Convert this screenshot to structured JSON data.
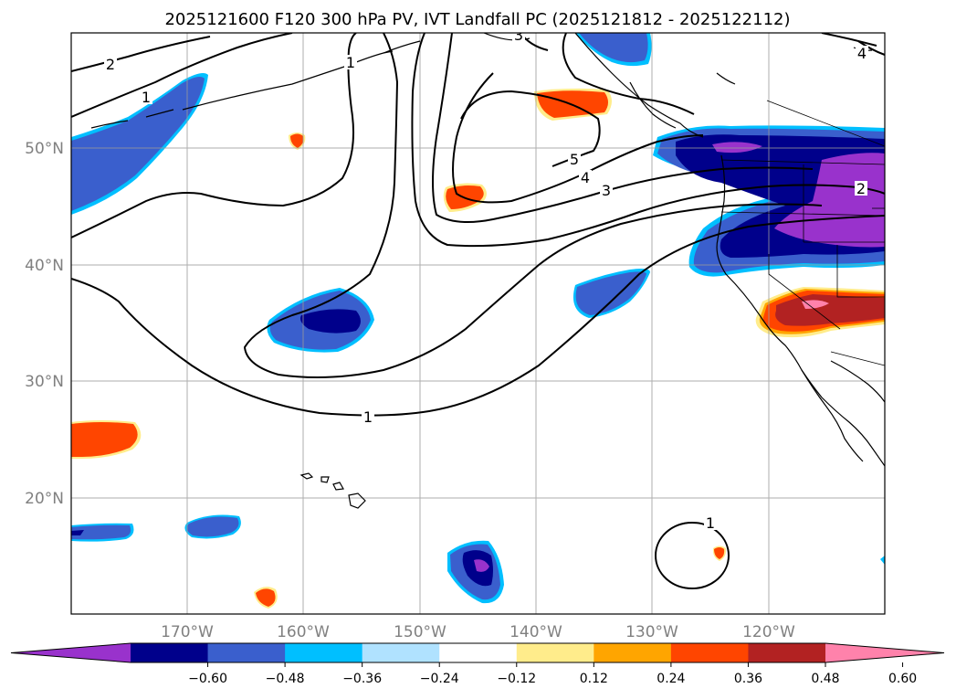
{
  "title": "2025121600 F120 300 hPa PV, IVT Landfall PC (2025121812 - 2025122112)",
  "lat_labels": [
    "50°N",
    "40°N",
    "30°N",
    "20°N"
  ],
  "lon_labels": [
    "170°W",
    "160°W",
    "150°W",
    "140°W",
    "130°W",
    "120°W"
  ],
  "map_extent": {
    "lon": [
      -180,
      -110
    ],
    "lat": [
      10,
      60
    ]
  },
  "colorbar": {
    "ticks": [
      "−0.60",
      "−0.48",
      "−0.36",
      "−0.24",
      "−0.12",
      "0.12",
      "0.24",
      "0.36",
      "0.48",
      "0.60"
    ],
    "colors": [
      "#9932CC",
      "#00008B",
      "#3A5FCD",
      "#00BFFF",
      "#B0E2FF",
      "#FFFFFF",
      "#FFEC8B",
      "#FFA500",
      "#FF4500",
      "#B22222",
      "#FF82AB"
    ],
    "extend": "both"
  },
  "contour_labels": [
    "1",
    "1",
    "1",
    "1",
    "2",
    "2",
    "3",
    "3",
    "4",
    "4",
    "5"
  ]
}
